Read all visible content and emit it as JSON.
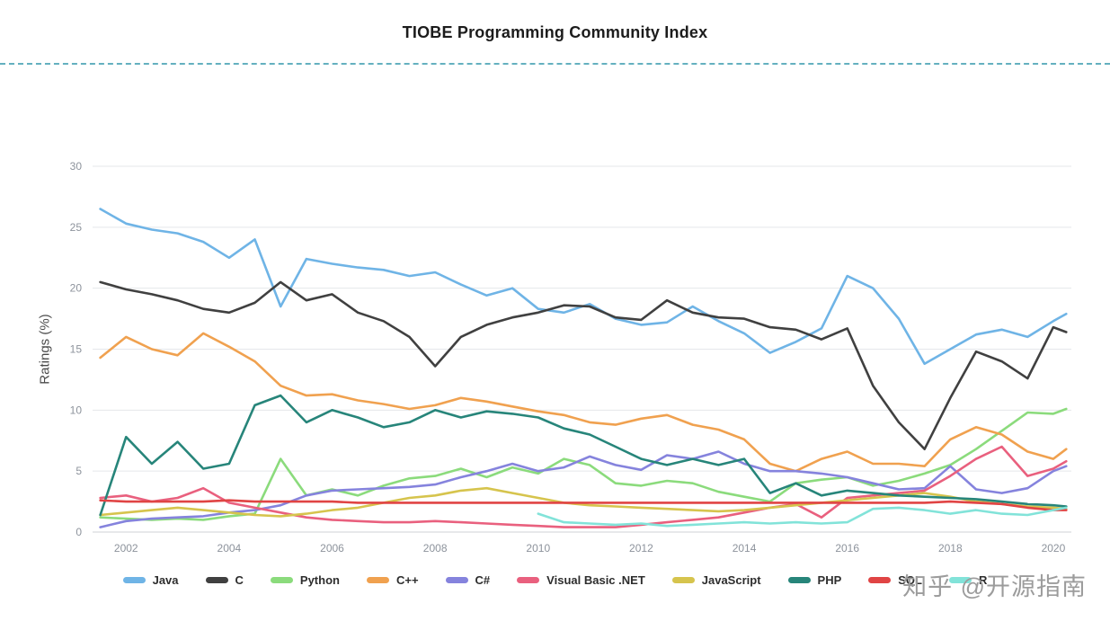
{
  "page": {
    "title": "TIOBE Programming Community Index",
    "watermark": "知乎 @开源指南"
  },
  "chart_data": {
    "type": "line",
    "title": "TIOBE Programming Community Index",
    "xlabel": "",
    "ylabel": "Ratings (%)",
    "xlim": [
      2001.35,
      2020.35
    ],
    "ylim": [
      0,
      30
    ],
    "y_ticks": [
      0,
      5,
      10,
      15,
      20,
      25,
      30
    ],
    "x_ticks": [
      2002,
      2004,
      2006,
      2008,
      2010,
      2012,
      2014,
      2016,
      2018,
      2020
    ],
    "grid": "horizontal",
    "legend_position": "bottom",
    "x": [
      2001.5,
      2002,
      2002.5,
      2003,
      2003.5,
      2004,
      2004.5,
      2005,
      2005.5,
      2006,
      2006.5,
      2007,
      2007.5,
      2008,
      2008.5,
      2009,
      2009.5,
      2010,
      2010.5,
      2011,
      2011.5,
      2012,
      2012.5,
      2013,
      2013.5,
      2014,
      2014.5,
      2015,
      2015.5,
      2016,
      2016.5,
      2017,
      2017.5,
      2018,
      2018.5,
      2019,
      2019.5,
      2020,
      2020.25
    ],
    "series": [
      {
        "name": "Java",
        "color": "#6fb4e6",
        "values": [
          26.5,
          25.3,
          24.8,
          24.5,
          23.8,
          22.5,
          24.0,
          18.5,
          22.4,
          22.0,
          21.7,
          21.5,
          21.0,
          21.3,
          20.3,
          19.4,
          20.0,
          18.3,
          18.0,
          18.7,
          17.5,
          17.0,
          17.2,
          18.5,
          17.3,
          16.3,
          14.7,
          15.6,
          16.7,
          21.0,
          20.0,
          17.5,
          13.8,
          15.0,
          16.2,
          16.6,
          16.0,
          17.3,
          17.9
        ]
      },
      {
        "name": "C",
        "color": "#404040",
        "values": [
          20.5,
          19.9,
          19.5,
          19.0,
          18.3,
          18.0,
          18.8,
          20.5,
          19.0,
          19.5,
          18.0,
          17.3,
          16.0,
          13.6,
          16.0,
          17.0,
          17.6,
          18.0,
          18.6,
          18.5,
          17.6,
          17.4,
          19.0,
          18.0,
          17.6,
          17.5,
          16.8,
          16.6,
          15.8,
          16.7,
          12.0,
          9.0,
          6.8,
          11.0,
          14.8,
          14.0,
          12.6,
          16.8,
          16.4
        ]
      },
      {
        "name": "Python",
        "color": "#8bdb7c",
        "values": [
          1.2,
          1.1,
          1.0,
          1.1,
          1.0,
          1.3,
          1.5,
          6.0,
          3.0,
          3.5,
          3.0,
          3.8,
          4.4,
          4.6,
          5.2,
          4.5,
          5.3,
          4.8,
          6.0,
          5.5,
          4.0,
          3.8,
          4.2,
          4.0,
          3.3,
          2.9,
          2.5,
          4.0,
          4.3,
          4.5,
          3.8,
          4.2,
          4.8,
          5.5,
          6.8,
          8.3,
          9.8,
          9.7,
          10.1
        ]
      },
      {
        "name": "C++",
        "color": "#f0a14f",
        "values": [
          14.3,
          16.0,
          15.0,
          14.5,
          16.3,
          15.2,
          14.0,
          12.0,
          11.2,
          11.3,
          10.8,
          10.5,
          10.1,
          10.4,
          11.0,
          10.7,
          10.3,
          9.9,
          9.6,
          9.0,
          8.8,
          9.3,
          9.6,
          8.8,
          8.4,
          7.6,
          5.6,
          5.0,
          6.0,
          6.6,
          5.6,
          5.6,
          5.4,
          7.6,
          8.6,
          8.0,
          6.6,
          6.0,
          6.8
        ]
      },
      {
        "name": "C#",
        "color": "#8583dd",
        "values": [
          0.4,
          0.9,
          1.1,
          1.2,
          1.3,
          1.6,
          1.8,
          2.2,
          3.0,
          3.4,
          3.5,
          3.6,
          3.7,
          3.9,
          4.5,
          5.0,
          5.6,
          5.0,
          5.3,
          6.2,
          5.5,
          5.1,
          6.3,
          6.0,
          6.6,
          5.6,
          5.0,
          5.0,
          4.8,
          4.5,
          4.0,
          3.5,
          3.6,
          5.4,
          3.5,
          3.2,
          3.6,
          5.0,
          5.4
        ]
      },
      {
        "name": "Visual Basic .NET",
        "color": "#e9607e",
        "values": [
          2.8,
          3.0,
          2.5,
          2.8,
          3.6,
          2.4,
          2.0,
          1.6,
          1.2,
          1.0,
          0.9,
          0.8,
          0.8,
          0.9,
          0.8,
          0.7,
          0.6,
          0.5,
          0.4,
          0.4,
          0.4,
          0.6,
          0.8,
          1.0,
          1.2,
          1.6,
          2.0,
          2.3,
          1.2,
          2.8,
          3.0,
          3.2,
          3.4,
          4.6,
          6.0,
          7.0,
          4.6,
          5.2,
          5.8
        ]
      },
      {
        "name": "JavaScript",
        "color": "#d6c44d",
        "values": [
          1.4,
          1.6,
          1.8,
          2.0,
          1.8,
          1.6,
          1.4,
          1.3,
          1.5,
          1.8,
          2.0,
          2.4,
          2.8,
          3.0,
          3.4,
          3.6,
          3.2,
          2.8,
          2.4,
          2.2,
          2.1,
          2.0,
          1.9,
          1.8,
          1.7,
          1.8,
          2.0,
          2.2,
          2.4,
          2.6,
          2.8,
          3.0,
          3.2,
          2.9,
          2.5,
          2.3,
          2.1,
          2.0,
          1.9
        ]
      },
      {
        "name": "PHP",
        "color": "#27857a",
        "values": [
          1.4,
          7.8,
          5.6,
          7.4,
          5.2,
          5.6,
          10.4,
          11.2,
          9.0,
          10.0,
          9.4,
          8.6,
          9.0,
          10.0,
          9.4,
          9.9,
          9.7,
          9.4,
          8.5,
          8.0,
          7.0,
          6.0,
          5.5,
          6.0,
          5.5,
          6.0,
          3.2,
          4.0,
          3.0,
          3.4,
          3.2,
          3.0,
          2.9,
          2.8,
          2.7,
          2.5,
          2.3,
          2.2,
          2.1
        ]
      },
      {
        "name": "SQL",
        "color": "#e04444",
        "values": [
          2.6,
          2.5,
          2.5,
          2.5,
          2.5,
          2.6,
          2.5,
          2.5,
          2.5,
          2.5,
          2.4,
          2.4,
          2.4,
          2.4,
          2.4,
          2.4,
          2.4,
          2.4,
          2.4,
          2.4,
          2.4,
          2.4,
          2.4,
          2.4,
          2.4,
          2.4,
          2.4,
          2.4,
          2.4,
          2.4,
          2.4,
          2.4,
          2.4,
          2.5,
          2.4,
          2.3,
          2.0,
          1.8,
          1.8
        ]
      },
      {
        "name": "R",
        "color": "#82e3d9",
        "values": [
          null,
          null,
          null,
          null,
          null,
          null,
          null,
          null,
          null,
          null,
          null,
          null,
          null,
          null,
          null,
          null,
          null,
          1.5,
          0.8,
          0.7,
          0.6,
          0.7,
          0.5,
          0.6,
          0.7,
          0.8,
          0.7,
          0.8,
          0.7,
          0.8,
          1.9,
          2.0,
          1.8,
          1.5,
          1.8,
          1.5,
          1.4,
          1.8,
          2.0
        ]
      }
    ]
  }
}
